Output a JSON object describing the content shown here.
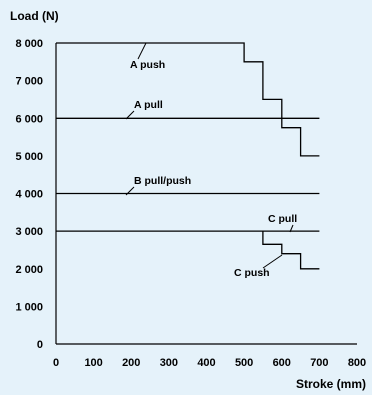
{
  "chart_data": {
    "type": "line",
    "xlabel": "Stroke (mm)",
    "ylabel": "Load (N)",
    "xlim": [
      0,
      800
    ],
    "ylim": [
      0,
      8000
    ],
    "xticks": [
      0,
      100,
      200,
      300,
      400,
      500,
      600,
      700,
      800
    ],
    "yticks": [
      0,
      1000,
      2000,
      3000,
      4000,
      5000,
      6000,
      7000,
      8000
    ],
    "xtick_labels": [
      "0",
      "100",
      "200",
      "300",
      "400",
      "500",
      "600",
      "700",
      "800"
    ],
    "ytick_labels": [
      "0",
      "1 000",
      "2 000",
      "3 000",
      "4 000",
      "5 000",
      "6 000",
      "7 000",
      "8 000"
    ],
    "grid": false,
    "series": [
      {
        "name": "A push",
        "x": [
          0,
          500,
          500,
          550,
          550,
          600,
          600,
          650,
          650,
          700
        ],
        "y": [
          8000,
          8000,
          7500,
          7500,
          6500,
          6500,
          5750,
          5750,
          5000,
          5000
        ]
      },
      {
        "name": "A pull",
        "x": [
          0,
          700
        ],
        "y": [
          6000,
          6000
        ]
      },
      {
        "name": "B pull/push",
        "x": [
          0,
          700
        ],
        "y": [
          4000,
          4000
        ]
      },
      {
        "name": "C pull",
        "x": [
          0,
          700
        ],
        "y": [
          3000,
          3000
        ]
      },
      {
        "name": "C push",
        "x": [
          550,
          550,
          600,
          600,
          650,
          650,
          700
        ],
        "y": [
          3000,
          2650,
          2650,
          2400,
          2400,
          2000,
          2000
        ]
      }
    ]
  },
  "colors": {
    "background": "#e5f2fa",
    "line": "#000000"
  }
}
